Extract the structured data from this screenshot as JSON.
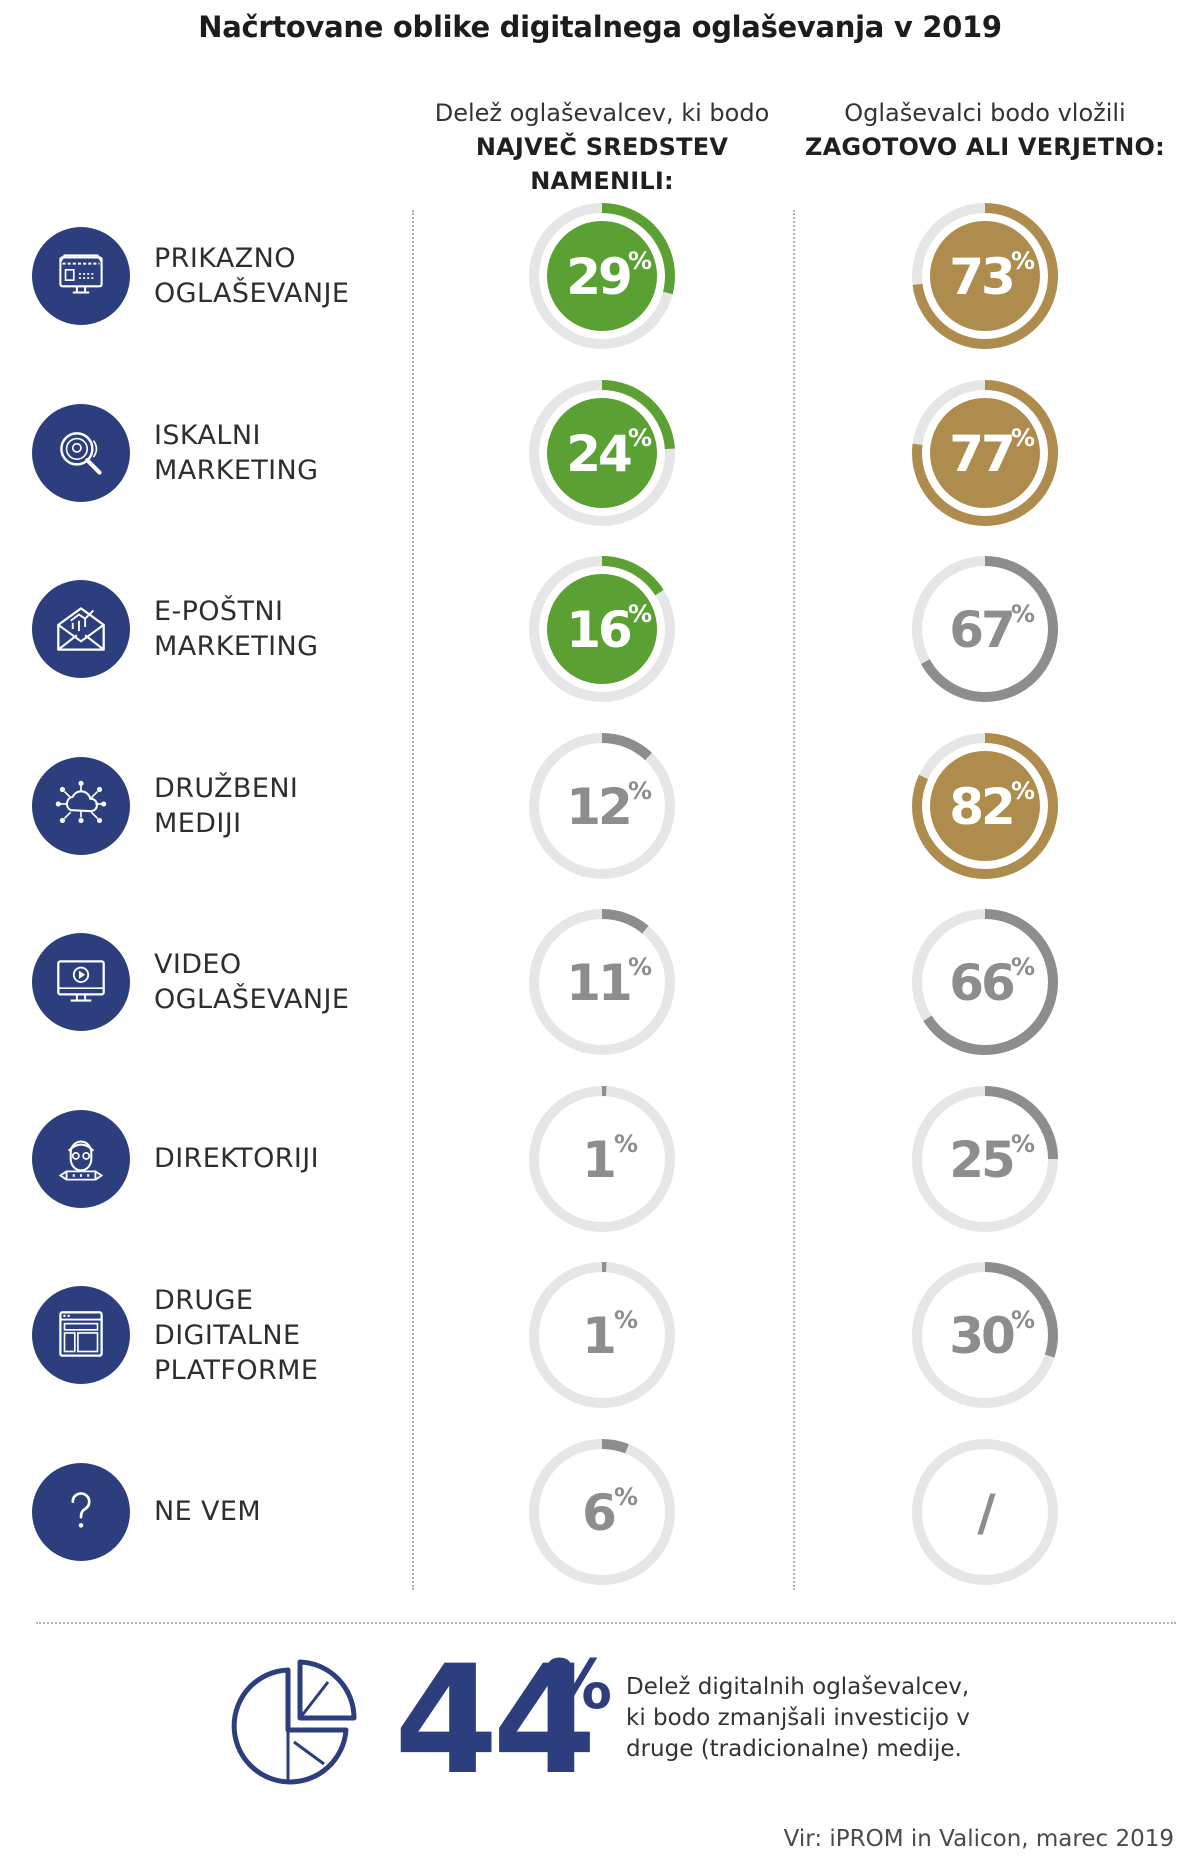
{
  "title": "Načrtovane oblike digitalnega oglaševanja v 2019",
  "columns": {
    "left": {
      "line1": "Delež oglaševalcev, ki bodo",
      "line2": "NAJVEČ SREDSTEV NAMENILI:"
    },
    "right": {
      "line1": "Oglaševalci bodo vložili",
      "line2": "ZAGOTOVO ALI VERJETNO:"
    }
  },
  "colors": {
    "navy": "#2c3e7d",
    "green": "#5aa032",
    "gold": "#ae8c4d",
    "gray": "#8d8d8d",
    "track": "#e6e6e6"
  },
  "chart_data": {
    "type": "donut",
    "title": "Načrtovane oblike digitalnega oglaševanja v 2019",
    "categories": [
      [
        "PRIKAZNO",
        "OGLAŠEVANJE"
      ],
      [
        "ISKALNI",
        "MARKETING"
      ],
      [
        "E-POŠTNI",
        "MARKETING"
      ],
      [
        "DRUŽBENI",
        "MEDIJI"
      ],
      [
        "VIDEO",
        "OGLAŠEVANJE"
      ],
      [
        "DIREKTORIJI"
      ],
      [
        "DRUGE",
        "DIGITALNE",
        "PLATFORME"
      ],
      [
        "NE VEM"
      ]
    ],
    "icons": [
      "display-ad-icon",
      "search-marketing-icon",
      "email-marketing-icon",
      "social-network-icon",
      "video-screen-icon",
      "directory-person-icon",
      "browser-window-icon",
      "question-mark-icon"
    ],
    "series": [
      {
        "name": "Delež oglaševalcev, ki bodo NAJVEČ SREDSTEV NAMENILI:",
        "values": [
          29,
          24,
          16,
          12,
          11,
          1,
          1,
          6
        ],
        "labels": [
          "29",
          "24",
          "16",
          "12",
          "11",
          "1",
          "1",
          "6"
        ],
        "styles": [
          "green",
          "green",
          "green",
          "gray",
          "gray",
          "gray",
          "gray",
          "gray"
        ]
      },
      {
        "name": "Oglaševalci bodo vložili ZAGOTOVO ALI VERJETNO:",
        "values": [
          73,
          77,
          67,
          82,
          66,
          25,
          30,
          null
        ],
        "labels": [
          "73",
          "77",
          "67",
          "82",
          "66",
          "25",
          "30",
          "/"
        ],
        "styles": [
          "gold",
          "gold",
          "gray",
          "gold",
          "gray",
          "gray",
          "gray",
          "gray"
        ]
      }
    ],
    "unit": "%"
  },
  "footer": {
    "value": "44",
    "unit": "%",
    "text": [
      "Delež digitalnih oglaševalcev,",
      "ki bodo zmanjšali investicijo v",
      "druge (tradicionalne) medije."
    ],
    "icon": "pie-chart-icon"
  },
  "source": "Vir: iPROM in Valicon, marec 2019"
}
